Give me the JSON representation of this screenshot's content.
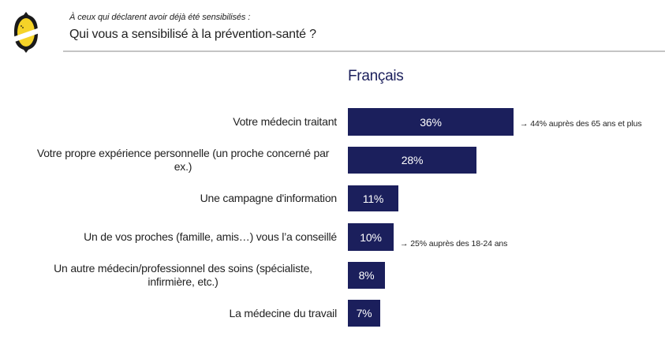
{
  "header": {
    "subtitle": "À ceux qui déclarent avoir déjà été sensibilisés :",
    "title": "Qui vous a sensibilisé à la prévention-santé ?",
    "logo_icon": "lemon-logo-icon"
  },
  "colors": {
    "bar": "#1b1f5c",
    "chart_title": "#1b1f5c",
    "logo_yellow": "#f5d328",
    "logo_black": "#1a1a1a",
    "rule": "#c4c4c4"
  },
  "chart_data": {
    "type": "bar",
    "orientation": "horizontal",
    "title": "Français",
    "xlabel": "",
    "ylabel": "",
    "unit": "%",
    "grid": false,
    "legend": "none",
    "categories": [
      "Votre médecin traitant",
      "Votre propre expérience personnelle (un proche concerné par ex.)",
      "Une campagne d'information",
      "Un de vos proches (famille, amis…) vous l’a conseillé",
      "Un autre médecin/professionnel des soins (spécialiste, infirmière, etc.)",
      "La médecine du travail"
    ],
    "label_lines": [
      [
        "Votre médecin traitant"
      ],
      [
        "Votre propre expérience personnelle (un proche concerné par",
        "ex.)"
      ],
      [
        "Une campagne d'information"
      ],
      [
        "Un de vos proches (famille, amis…) vous l’a conseillé"
      ],
      [
        "Un autre médecin/professionnel des soins (spécialiste,",
        "infirmière, etc.)"
      ],
      [
        "La médecine du travail"
      ]
    ],
    "values": [
      36,
      28,
      11,
      10,
      8,
      7
    ],
    "data_labels": [
      "36%",
      "28%",
      "11%",
      "10%",
      "8%",
      "7%"
    ],
    "annotations": [
      {
        "category_index": 0,
        "text": "→ 44% auprès des 65 ans et plus"
      },
      {
        "category_index": 3,
        "text": "→ 25% auprès des 18-24 ans"
      }
    ],
    "xlim": [
      0,
      36
    ]
  }
}
